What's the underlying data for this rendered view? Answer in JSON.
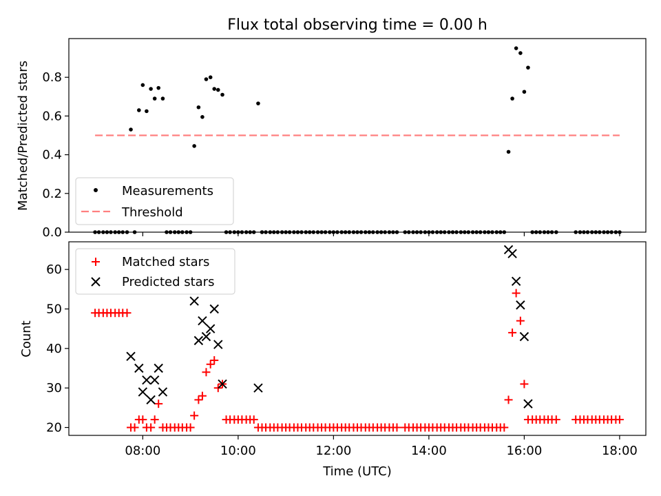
{
  "chart_data": [
    {
      "type": "scatter",
      "title": "Flux total observing time = 0.00 h",
      "ylabel": "Matched/Predicted stars",
      "ylim": [
        0,
        1.0
      ],
      "yticks": [
        "0.0",
        "0.2",
        "0.4",
        "0.6",
        "0.8"
      ],
      "ytick_values": [
        0,
        0.2,
        0.4,
        0.6,
        0.8
      ],
      "legend": "lower-left",
      "series": [
        {
          "name": "Measurements",
          "color": "#000000",
          "marker": "dot",
          "x": [
            7.75,
            7.92,
            8.0,
            8.08,
            8.17,
            8.25,
            8.33,
            8.42,
            9.08,
            9.17,
            9.25,
            9.33,
            9.42,
            9.5,
            9.58,
            9.67,
            10.42,
            15.67,
            15.75,
            15.83,
            15.92,
            16.0,
            16.08
          ],
          "y": [
            0.53,
            0.63,
            0.76,
            0.625,
            0.74,
            0.69,
            0.745,
            0.69,
            0.445,
            0.645,
            0.595,
            0.79,
            0.8,
            0.74,
            0.735,
            0.71,
            0.665,
            0.415,
            0.69,
            0.95,
            0.925,
            0.725,
            0.85
          ],
          "zero_x": [
            7.0,
            7.08,
            7.17,
            7.25,
            7.33,
            7.42,
            7.5,
            7.58,
            7.67,
            7.83,
            8.5,
            8.58,
            8.67,
            8.75,
            8.83,
            8.92,
            9.0,
            9.75,
            9.83,
            9.92,
            10.0,
            10.08,
            10.17,
            10.25,
            10.33,
            10.5,
            10.58,
            10.67,
            10.75,
            10.83,
            10.92,
            11.0,
            11.08,
            11.17,
            11.25,
            11.33,
            11.42,
            11.5,
            11.58,
            11.67,
            11.75,
            11.83,
            11.92,
            12.0,
            12.08,
            12.17,
            12.25,
            12.33,
            12.42,
            12.5,
            12.58,
            12.67,
            12.75,
            12.83,
            12.92,
            13.0,
            13.08,
            13.17,
            13.25,
            13.33,
            13.5,
            13.58,
            13.67,
            13.75,
            13.83,
            13.92,
            14.0,
            14.08,
            14.17,
            14.25,
            14.33,
            14.42,
            14.5,
            14.58,
            14.67,
            14.75,
            14.83,
            14.92,
            15.0,
            15.08,
            15.17,
            15.25,
            15.33,
            15.42,
            15.5,
            15.58,
            16.17,
            16.25,
            16.33,
            16.42,
            16.5,
            16.58,
            16.67,
            17.08,
            17.17,
            17.25,
            17.33,
            17.42,
            17.5,
            17.58,
            17.67,
            17.75,
            17.83,
            17.92,
            18.0
          ]
        },
        {
          "name": "Threshold",
          "color": "#ff7f7f",
          "style": "dashed",
          "x": [
            7.0,
            18.0
          ],
          "y": [
            0.5,
            0.5
          ]
        }
      ]
    },
    {
      "type": "scatter",
      "xlabel": "Time (UTC)",
      "ylabel": "Count",
      "xlim": [
        6.45,
        18.55
      ],
      "xticks": [
        "08:00",
        "10:00",
        "12:00",
        "14:00",
        "16:00",
        "18:00"
      ],
      "xtick_values": [
        8,
        10,
        12,
        14,
        16,
        18
      ],
      "ylim": [
        18,
        67
      ],
      "yticks": [
        "20",
        "30",
        "40",
        "50",
        "60"
      ],
      "ytick_values": [
        20,
        30,
        40,
        50,
        60
      ],
      "legend": "top-left",
      "series": [
        {
          "name": "Matched stars",
          "color": "#ff0000",
          "marker": "plus",
          "x": [
            7.0,
            7.08,
            7.17,
            7.25,
            7.33,
            7.42,
            7.5,
            7.58,
            7.67,
            7.75,
            7.83,
            7.92,
            8.0,
            8.08,
            8.17,
            8.25,
            8.33,
            8.42,
            8.5,
            8.58,
            8.67,
            8.75,
            8.83,
            8.92,
            9.0,
            9.08,
            9.17,
            9.25,
            9.33,
            9.42,
            9.5,
            9.58,
            9.67,
            9.75,
            9.83,
            9.92,
            10.0,
            10.08,
            10.17,
            10.25,
            10.33,
            10.42,
            10.5,
            10.58,
            10.67,
            10.75,
            10.83,
            10.92,
            11.0,
            11.08,
            11.17,
            11.25,
            11.33,
            11.42,
            11.5,
            11.58,
            11.67,
            11.75,
            11.83,
            11.92,
            12.0,
            12.08,
            12.17,
            12.25,
            12.33,
            12.42,
            12.5,
            12.58,
            12.67,
            12.75,
            12.83,
            12.92,
            13.0,
            13.08,
            13.17,
            13.25,
            13.33,
            13.5,
            13.58,
            13.67,
            13.75,
            13.83,
            13.92,
            14.0,
            14.08,
            14.17,
            14.25,
            14.33,
            14.42,
            14.5,
            14.58,
            14.67,
            14.75,
            14.83,
            14.92,
            15.0,
            15.08,
            15.17,
            15.25,
            15.33,
            15.42,
            15.5,
            15.58,
            15.67,
            15.75,
            15.83,
            15.92,
            16.0,
            16.08,
            16.17,
            16.25,
            16.33,
            16.42,
            16.5,
            16.58,
            16.67,
            17.08,
            17.17,
            17.25,
            17.33,
            17.42,
            17.5,
            17.58,
            17.67,
            17.75,
            17.83,
            17.92,
            18.0
          ],
          "y": [
            49,
            49,
            49,
            49,
            49,
            49,
            49,
            49,
            49,
            20,
            20,
            22,
            22,
            20,
            20,
            22,
            26,
            20,
            20,
            20,
            20,
            20,
            20,
            20,
            20,
            23,
            27,
            28,
            34,
            36,
            37,
            30,
            31,
            22,
            22,
            22,
            22,
            22,
            22,
            22,
            22,
            20,
            20,
            20,
            20,
            20,
            20,
            20,
            20,
            20,
            20,
            20,
            20,
            20,
            20,
            20,
            20,
            20,
            20,
            20,
            20,
            20,
            20,
            20,
            20,
            20,
            20,
            20,
            20,
            20,
            20,
            20,
            20,
            20,
            20,
            20,
            20,
            20,
            20,
            20,
            20,
            20,
            20,
            20,
            20,
            20,
            20,
            20,
            20,
            20,
            20,
            20,
            20,
            20,
            20,
            20,
            20,
            20,
            20,
            20,
            20,
            20,
            20,
            27,
            44,
            54,
            47,
            31,
            22,
            22,
            22,
            22,
            22,
            22,
            22,
            22,
            22,
            22,
            22,
            22,
            22,
            22,
            22,
            22,
            22,
            22,
            22,
            22
          ]
        },
        {
          "name": "Predicted stars",
          "color": "#000000",
          "marker": "x",
          "x": [
            7.75,
            7.92,
            8.0,
            8.08,
            8.17,
            8.25,
            8.33,
            8.42,
            9.08,
            9.17,
            9.25,
            9.33,
            9.42,
            9.5,
            9.58,
            9.67,
            10.42,
            15.67,
            15.75,
            15.83,
            15.92,
            16.0,
            16.08
          ],
          "y": [
            38,
            35,
            29,
            32,
            27,
            32,
            35,
            29,
            52,
            42,
            47,
            43,
            45,
            50,
            41,
            31,
            30,
            65,
            64,
            57,
            51,
            43,
            26
          ]
        }
      ]
    }
  ]
}
